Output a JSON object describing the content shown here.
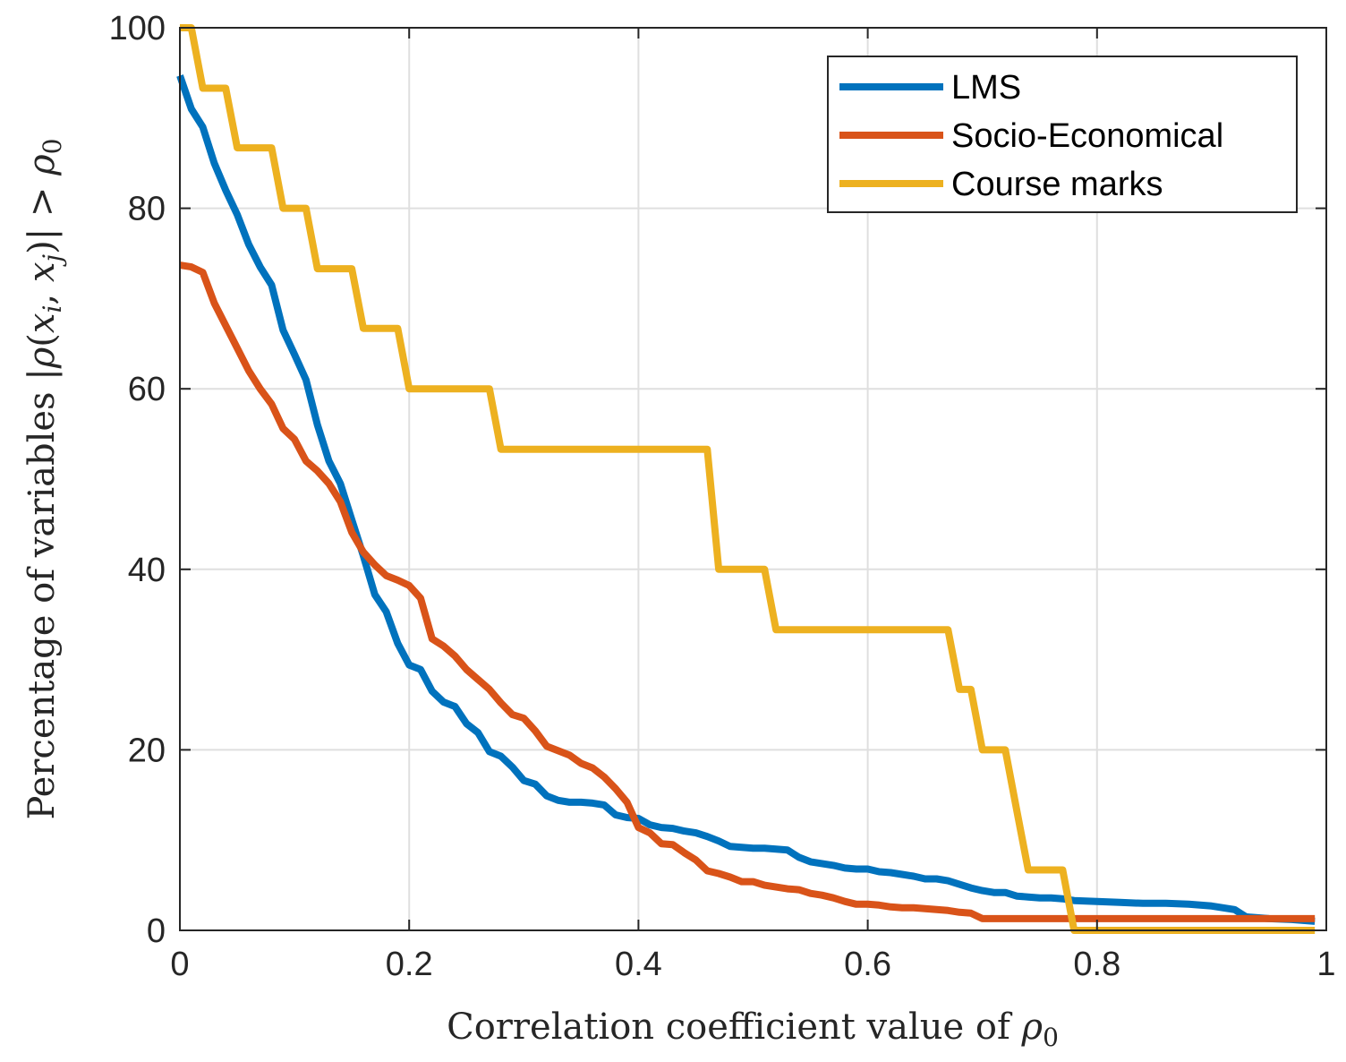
{
  "chart_data": {
    "type": "line",
    "title": "",
    "xlabel": "Correlation coefficient value of ρ0",
    "xlabel_parts": {
      "prefix": "Correlation coefficient value of ",
      "symbol": "ρ",
      "subscript": "0"
    },
    "ylabel": "Percentage of variables |ρ(xi, xj)| > ρ0",
    "ylabel_parts": {
      "prefix": "Percentage of variables |",
      "rho": "ρ",
      "open": "(",
      "x": "x",
      "i": "i",
      "comma": ", ",
      "j": "j",
      "close": ")| > ",
      "rho0": "ρ",
      "zero": "0"
    },
    "xlim": [
      0,
      1
    ],
    "ylim": [
      0,
      100
    ],
    "xticks": [
      0,
      0.2,
      0.4,
      0.6,
      0.8,
      1
    ],
    "xtick_labels": [
      "0",
      "0.2",
      "0.4",
      "0.6",
      "0.8",
      "1"
    ],
    "yticks": [
      0,
      20,
      40,
      60,
      80,
      100
    ],
    "ytick_labels": [
      "0",
      "20",
      "40",
      "60",
      "80",
      "100"
    ],
    "grid": true,
    "legend": {
      "location": "top-right"
    },
    "series": [
      {
        "name": "LMS",
        "color": "#0072BD",
        "x": [
          0,
          0.01,
          0.02,
          0.03,
          0.04,
          0.05,
          0.06,
          0.07,
          0.08,
          0.09,
          0.1,
          0.11,
          0.12,
          0.13,
          0.14,
          0.15,
          0.16,
          0.17,
          0.18,
          0.19,
          0.2,
          0.21,
          0.22,
          0.23,
          0.24,
          0.25,
          0.26,
          0.27,
          0.28,
          0.29,
          0.3,
          0.31,
          0.32,
          0.33,
          0.34,
          0.35,
          0.36,
          0.37,
          0.38,
          0.39,
          0.4,
          0.41,
          0.42,
          0.43,
          0.44,
          0.45,
          0.46,
          0.47,
          0.48,
          0.49,
          0.5,
          0.51,
          0.52,
          0.53,
          0.54,
          0.55,
          0.56,
          0.57,
          0.58,
          0.59,
          0.6,
          0.61,
          0.62,
          0.63,
          0.64,
          0.65,
          0.66,
          0.67,
          0.68,
          0.69,
          0.7,
          0.71,
          0.72,
          0.73,
          0.74,
          0.75,
          0.76,
          0.77,
          0.78,
          0.8,
          0.82,
          0.84,
          0.86,
          0.88,
          0.9,
          0.91,
          0.92,
          0.93,
          0.95,
          0.97,
          0.99
        ],
        "y": [
          94.7,
          91,
          89,
          85,
          82,
          79.3,
          76,
          73.5,
          71.5,
          66.5,
          63.8,
          61,
          56,
          52,
          49.5,
          45.5,
          41.5,
          37.2,
          35.3,
          31.8,
          29.4,
          28.9,
          26.5,
          25.3,
          24.8,
          22.9,
          21.9,
          19.8,
          19.3,
          18.1,
          16.6,
          16.2,
          14.9,
          14.4,
          14.2,
          14.2,
          14.1,
          13.9,
          12.8,
          12.5,
          12.4,
          11.7,
          11.4,
          11.3,
          11,
          10.8,
          10.4,
          9.9,
          9.3,
          9.2,
          9.1,
          9.1,
          9,
          8.9,
          8.1,
          7.6,
          7.4,
          7.2,
          6.9,
          6.8,
          6.8,
          6.5,
          6.4,
          6.2,
          6,
          5.7,
          5.7,
          5.5,
          5.1,
          4.7,
          4.4,
          4.2,
          4.2,
          3.8,
          3.7,
          3.6,
          3.6,
          3.5,
          3.3,
          3.2,
          3.1,
          3,
          3,
          2.9,
          2.7,
          2.5,
          2.3,
          1.5,
          1.3,
          1.2,
          1
        ]
      },
      {
        "name": "Socio-Economical",
        "color": "#D95319",
        "x": [
          0,
          0.01,
          0.02,
          0.03,
          0.04,
          0.05,
          0.06,
          0.07,
          0.08,
          0.09,
          0.1,
          0.11,
          0.12,
          0.13,
          0.14,
          0.15,
          0.16,
          0.17,
          0.18,
          0.19,
          0.2,
          0.21,
          0.22,
          0.23,
          0.24,
          0.25,
          0.26,
          0.27,
          0.28,
          0.29,
          0.3,
          0.31,
          0.32,
          0.33,
          0.34,
          0.35,
          0.36,
          0.37,
          0.38,
          0.39,
          0.4,
          0.41,
          0.42,
          0.43,
          0.44,
          0.45,
          0.46,
          0.47,
          0.48,
          0.49,
          0.5,
          0.51,
          0.52,
          0.53,
          0.54,
          0.55,
          0.56,
          0.57,
          0.58,
          0.59,
          0.6,
          0.61,
          0.62,
          0.63,
          0.64,
          0.65,
          0.66,
          0.67,
          0.68,
          0.69,
          0.7,
          0.72,
          0.74,
          0.76,
          0.8,
          0.85,
          0.9,
          0.95,
          0.99
        ],
        "y": [
          73.7,
          73.5,
          72.9,
          69.5,
          67,
          64.5,
          62,
          60,
          58.3,
          55.6,
          54.4,
          52,
          50.9,
          49.5,
          47.5,
          44.1,
          41.9,
          40.5,
          39.3,
          38.8,
          38.2,
          36.8,
          32.3,
          31.5,
          30.4,
          28.9,
          27.8,
          26.7,
          25.2,
          23.9,
          23.5,
          22.1,
          20.4,
          19.9,
          19.4,
          18.5,
          18,
          17,
          15.7,
          14.2,
          11.4,
          10.8,
          9.6,
          9.5,
          8.6,
          7.8,
          6.6,
          6.3,
          5.9,
          5.4,
          5.4,
          5,
          4.8,
          4.6,
          4.5,
          4.1,
          3.9,
          3.6,
          3.2,
          2.9,
          2.9,
          2.8,
          2.6,
          2.5,
          2.5,
          2.4,
          2.3,
          2.2,
          2,
          1.9,
          1.3,
          1.3,
          1.3,
          1.3,
          1.3,
          1.3,
          1.3,
          1.3,
          1.3
        ]
      },
      {
        "name": "Course marks",
        "color": "#EDB120",
        "x": [
          0,
          0.01,
          0.02,
          0.03,
          0.04,
          0.05,
          0.06,
          0.07,
          0.08,
          0.09,
          0.1,
          0.11,
          0.12,
          0.13,
          0.14,
          0.15,
          0.16,
          0.17,
          0.18,
          0.19,
          0.2,
          0.21,
          0.22,
          0.26,
          0.27,
          0.28,
          0.45,
          0.46,
          0.47,
          0.5,
          0.51,
          0.52,
          0.65,
          0.66,
          0.67,
          0.68,
          0.69,
          0.7,
          0.71,
          0.72,
          0.73,
          0.74,
          0.77,
          0.78,
          0.99
        ],
        "y": [
          100,
          100,
          93.3,
          93.3,
          93.3,
          86.7,
          86.7,
          86.7,
          86.7,
          80,
          80,
          80,
          73.3,
          73.3,
          73.3,
          73.3,
          66.7,
          66.7,
          66.7,
          66.7,
          60,
          60,
          60,
          60,
          60,
          53.3,
          53.3,
          53.3,
          40,
          40,
          40,
          33.3,
          33.3,
          33.3,
          33.3,
          26.7,
          26.7,
          20,
          20,
          20,
          13.3,
          6.7,
          6.7,
          0,
          0
        ]
      }
    ]
  }
}
